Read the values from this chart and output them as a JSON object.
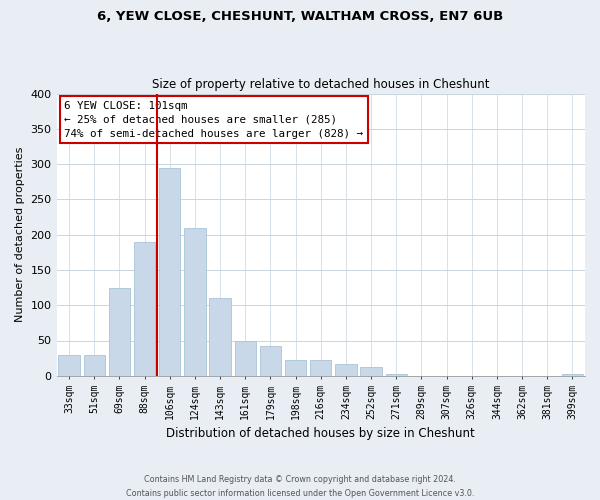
{
  "title_line1": "6, YEW CLOSE, CHESHUNT, WALTHAM CROSS, EN7 6UB",
  "title_line2": "Size of property relative to detached houses in Cheshunt",
  "xlabel": "Distribution of detached houses by size in Cheshunt",
  "ylabel": "Number of detached properties",
  "categories": [
    "33sqm",
    "51sqm",
    "69sqm",
    "88sqm",
    "106sqm",
    "124sqm",
    "143sqm",
    "161sqm",
    "179sqm",
    "198sqm",
    "216sqm",
    "234sqm",
    "252sqm",
    "271sqm",
    "289sqm",
    "307sqm",
    "326sqm",
    "344sqm",
    "362sqm",
    "381sqm",
    "399sqm"
  ],
  "values": [
    30,
    30,
    125,
    190,
    295,
    210,
    110,
    50,
    42,
    22,
    22,
    17,
    13,
    2,
    0,
    0,
    0,
    0,
    0,
    0,
    2
  ],
  "bar_color": "#c8d8e8",
  "bar_edge_color": "#a8c4d8",
  "highlight_bar_index": 4,
  "highlight_line_color": "#cc0000",
  "ylim": [
    0,
    400
  ],
  "yticks": [
    0,
    50,
    100,
    150,
    200,
    250,
    300,
    350,
    400
  ],
  "annotation_box_text_line1": "6 YEW CLOSE: 101sqm",
  "annotation_box_text_line2": "← 25% of detached houses are smaller (285)",
  "annotation_box_text_line3": "74% of semi-detached houses are larger (828) →",
  "annotation_box_color": "#ffffff",
  "annotation_box_edge_color": "#cc0000",
  "footer_line1": "Contains HM Land Registry data © Crown copyright and database right 2024.",
  "footer_line2": "Contains public sector information licensed under the Open Government Licence v3.0.",
  "background_color": "#e8eef4",
  "plot_background_color": "#ffffff",
  "grid_color": "#c8d4de"
}
